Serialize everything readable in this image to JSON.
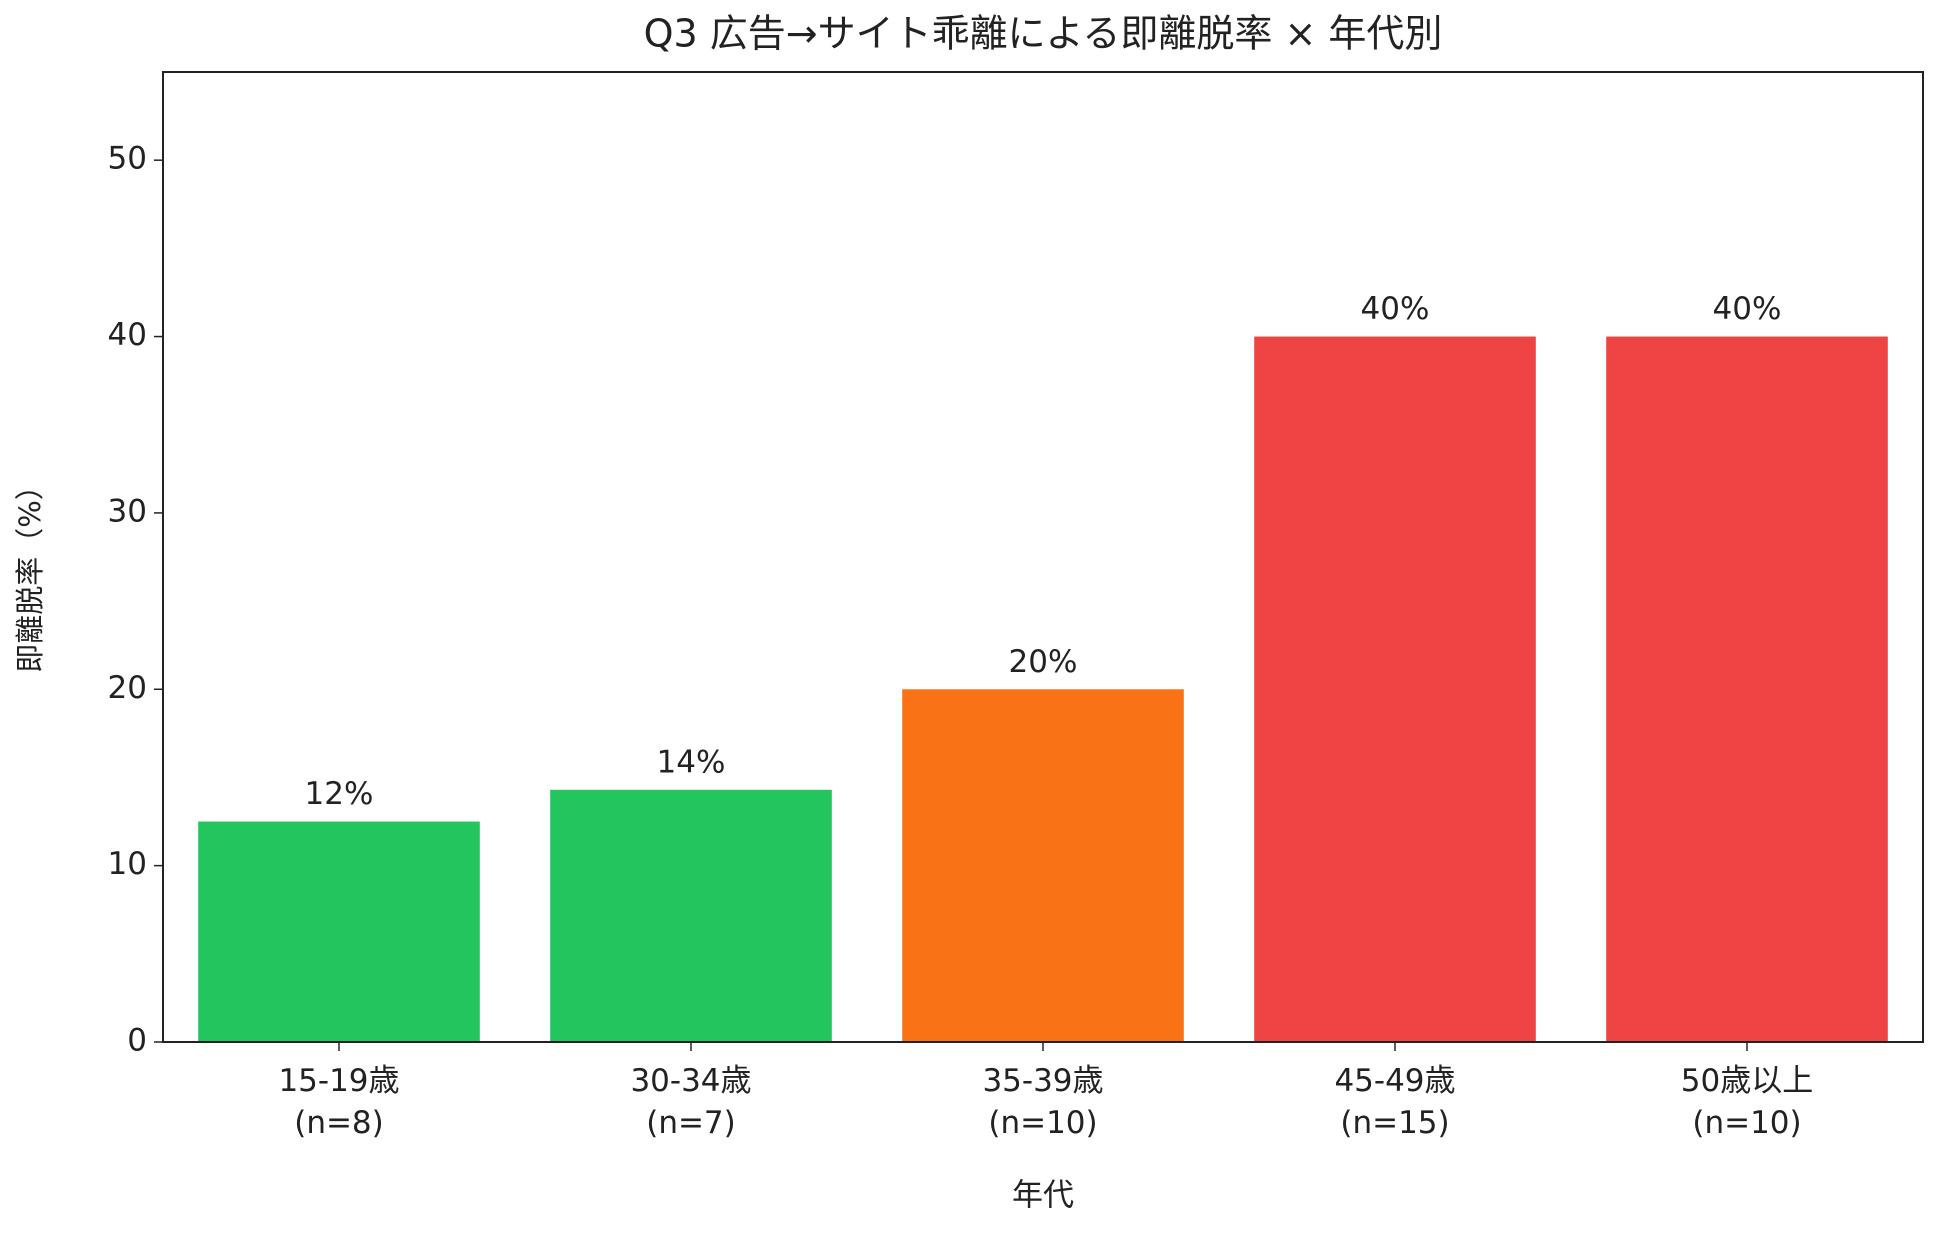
{
  "chart_data": {
    "type": "bar",
    "title": "Q3 広告→サイト乖離による即離脱率 × 年代別",
    "x_label": "年代",
    "y_label": "即離脱率（%）",
    "categories": [
      "15-19歳\n(n=8)",
      "30-34歳\n(n=7)",
      "35-39歳\n(n=10)",
      "45-49歳\n(n=15)",
      "50歳以上\n(n=10)"
    ],
    "values": [
      12.5,
      14.3,
      20,
      40,
      40
    ],
    "value_labels": [
      "12%",
      "14%",
      "20%",
      "40%",
      "40%"
    ],
    "colors": [
      "#22c55e",
      "#22c55e",
      "#f97316",
      "#ef4444",
      "#ef4444"
    ],
    "ylim": [
      0,
      55
    ],
    "yticks": [
      0,
      10,
      20,
      30,
      40,
      50
    ],
    "grid": false
  }
}
